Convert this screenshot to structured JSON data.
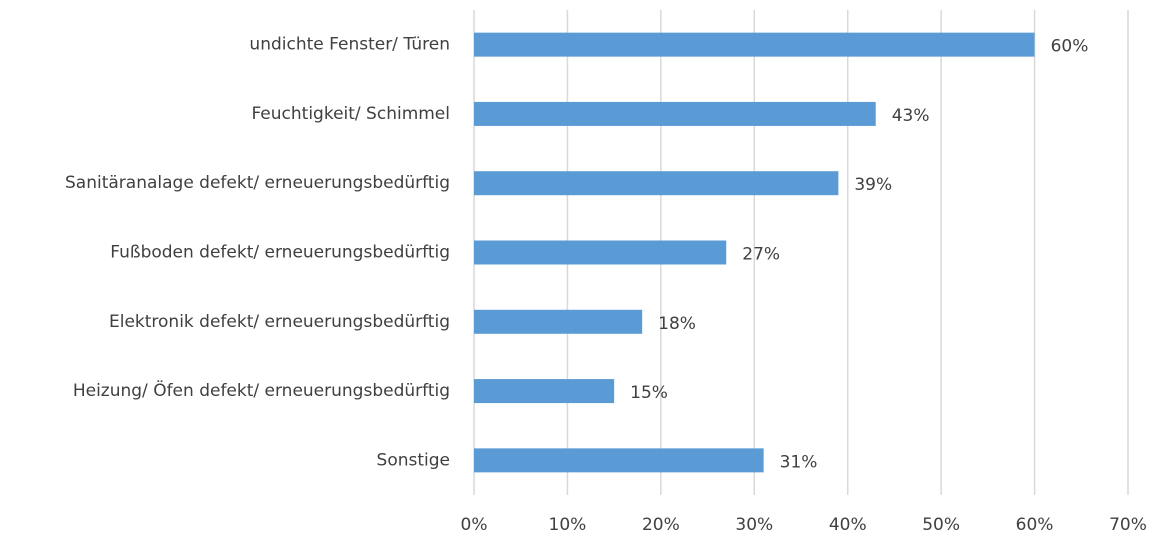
{
  "chart_data": {
    "type": "bar",
    "orientation": "horizontal",
    "categories": [
      "undichte Fenster/ Türen",
      "Feuchtigkeit/ Schimmel",
      "Sanitäranalage defekt/ erneuerungsbedürftig",
      "Fußboden defekt/ erneuerungsbedürftig",
      "Elektronik defekt/ erneuerungsbedürftig",
      "Heizung/ Öfen defekt/ erneuerungsbedürftig",
      "Sonstige"
    ],
    "values": [
      60,
      43,
      39,
      27,
      18,
      15,
      31
    ],
    "value_labels": [
      "60%",
      "43%",
      "39%",
      "27%",
      "18%",
      "15%",
      "31%"
    ],
    "color": "#5b9bd5",
    "xlim": [
      0,
      70
    ],
    "xticks": [
      {
        "value": 0,
        "label": "0%"
      },
      {
        "value": 10,
        "label": "10%"
      },
      {
        "value": 20,
        "label": "20%"
      },
      {
        "value": 30,
        "label": "30%"
      },
      {
        "value": 40,
        "label": "40%"
      },
      {
        "value": 50,
        "label": "50%"
      },
      {
        "value": 60,
        "label": "60%"
      },
      {
        "value": 70,
        "label": "70%"
      }
    ],
    "grid": true
  }
}
